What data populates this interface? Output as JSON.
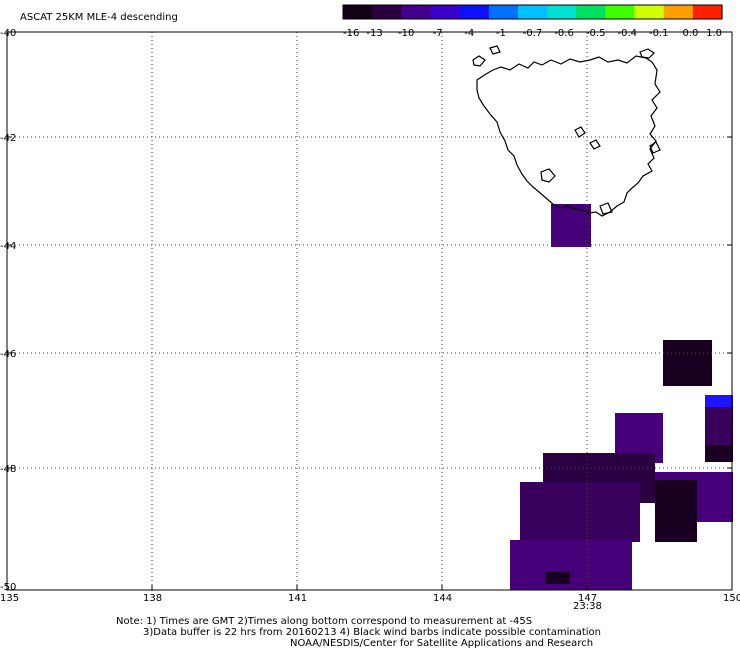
{
  "title": "ASCAT 25KM MLE-4 descending",
  "colorbar": {
    "labels": [
      "-16",
      "-13",
      "-10",
      "-7",
      "-4",
      "-1",
      "-0.7",
      "-0.6",
      "-0.5",
      "-0.4",
      "-0.1",
      "0.0",
      "1.0"
    ],
    "colors": [
      "#120014",
      "#2a0040",
      "#440088",
      "#3a00cc",
      "#1010ff",
      "#0070ff",
      "#00c0ff",
      "#00e0d0",
      "#00e060",
      "#40ff00",
      "#d0ff00",
      "#ffa000",
      "#ff2000"
    ]
  },
  "map": {
    "lon_range": [
      135,
      150
    ],
    "lat_range": [
      -50,
      -40
    ],
    "x_ticks": [
      "135",
      "138",
      "141",
      "144",
      "147",
      "150"
    ],
    "y_ticks": [
      "-40",
      "-42",
      "-44",
      "-46",
      "-48",
      "-50"
    ],
    "gridlines": "dotted",
    "swath_time": "23:38",
    "swath_time_color": "#cc2200",
    "data_colors": {
      "dark": "#1a0020",
      "purple": "#46007a",
      "mid": "#3a005e",
      "blue": "#1e14ff"
    }
  },
  "notes": {
    "line1": "Note: 1) Times are GMT 2)Times along bottom correspond to measurement at -45S",
    "line2": "3)Data buffer is 22 hrs from 20160213 4) Black wind barbs indicate possible contamination",
    "line3": "NOAA/NESDIS/Center for Satellite Applications and Research"
  }
}
